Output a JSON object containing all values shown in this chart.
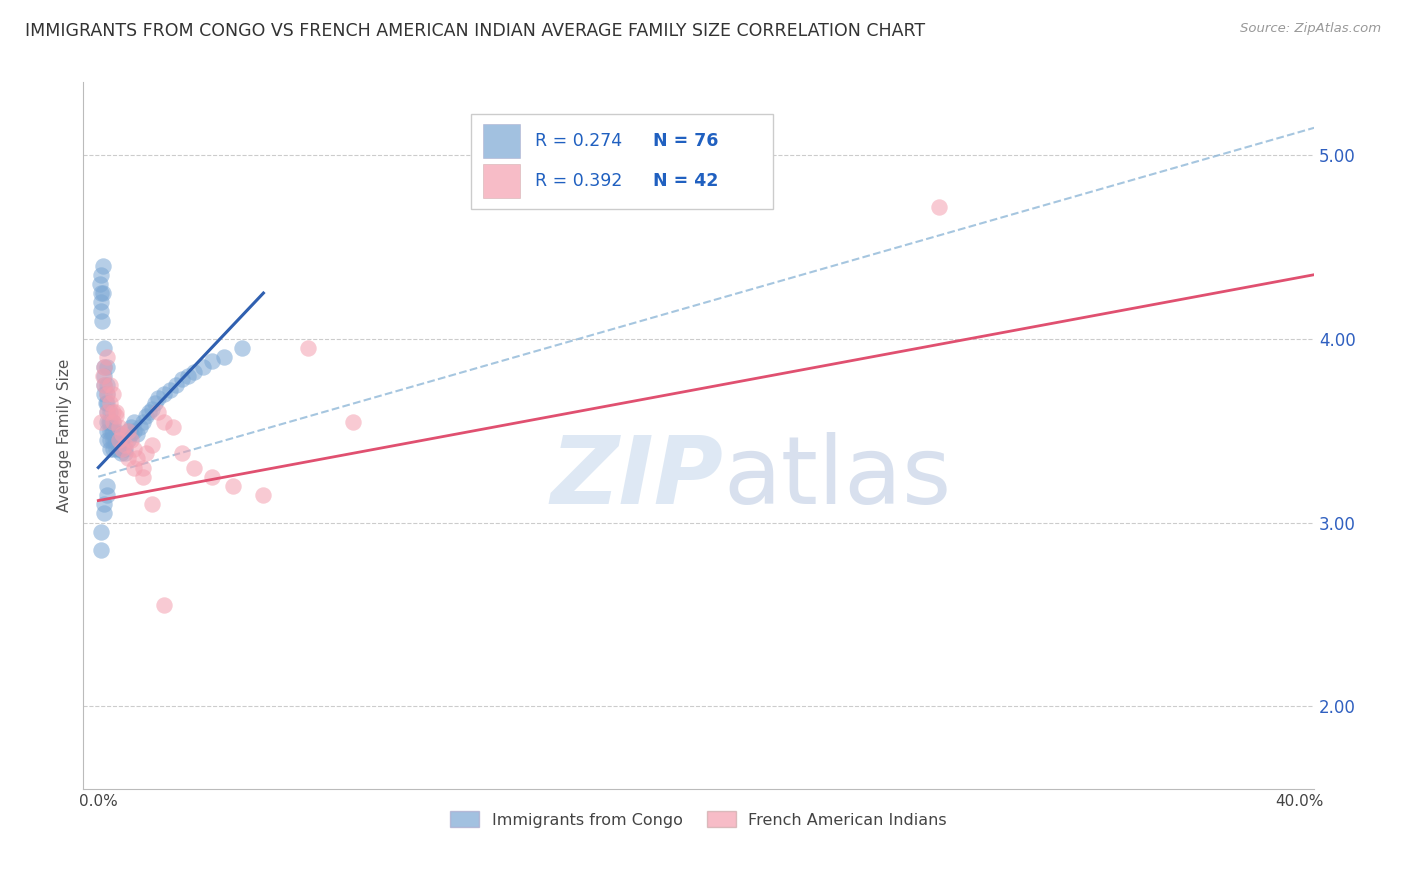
{
  "title": "IMMIGRANTS FROM CONGO VS FRENCH AMERICAN INDIAN AVERAGE FAMILY SIZE CORRELATION CHART",
  "source": "Source: ZipAtlas.com",
  "ylabel": "Average Family Size",
  "xlim": [
    -0.005,
    0.405
  ],
  "ylim": [
    1.55,
    5.4
  ],
  "yticks": [
    2.0,
    3.0,
    4.0,
    5.0
  ],
  "xtick_positions": [
    0.0,
    0.1,
    0.2,
    0.3,
    0.4
  ],
  "xtick_labels": [
    "0.0%",
    "",
    "",
    "",
    "40.0%"
  ],
  "legend_r1": "R = 0.274",
  "legend_n1": "N = 76",
  "legend_r2": "R = 0.392",
  "legend_n2": "N = 42",
  "label1": "Immigrants from Congo",
  "label2": "French American Indians",
  "color1": "#7ba7d4",
  "color2": "#f4a0b0",
  "trend_color1": "#3060b0",
  "trend_color2": "#e05070",
  "dash_color": "#90b8d8",
  "watermark_color": "#d0dff0",
  "title_fontsize": 12.5,
  "axis_label_fontsize": 11,
  "tick_fontsize": 11,
  "legend_text_color": "#2060c0",
  "congo_x": [
    0.0005,
    0.0008,
    0.001,
    0.001,
    0.001,
    0.0012,
    0.0015,
    0.0015,
    0.002,
    0.002,
    0.002,
    0.002,
    0.002,
    0.0025,
    0.003,
    0.003,
    0.003,
    0.003,
    0.003,
    0.003,
    0.003,
    0.003,
    0.0035,
    0.004,
    0.004,
    0.004,
    0.004,
    0.004,
    0.0045,
    0.005,
    0.005,
    0.005,
    0.005,
    0.0055,
    0.006,
    0.006,
    0.006,
    0.0065,
    0.007,
    0.007,
    0.007,
    0.0075,
    0.008,
    0.008,
    0.009,
    0.009,
    0.01,
    0.01,
    0.011,
    0.011,
    0.012,
    0.012,
    0.013,
    0.014,
    0.015,
    0.016,
    0.017,
    0.018,
    0.019,
    0.02,
    0.022,
    0.024,
    0.026,
    0.028,
    0.03,
    0.032,
    0.035,
    0.038,
    0.042,
    0.048,
    0.001,
    0.001,
    0.002,
    0.002,
    0.003,
    0.003
  ],
  "congo_y": [
    4.3,
    4.25,
    4.2,
    4.35,
    4.15,
    4.1,
    4.4,
    4.25,
    3.95,
    3.85,
    3.8,
    3.75,
    3.7,
    3.65,
    3.85,
    3.75,
    3.7,
    3.65,
    3.6,
    3.55,
    3.5,
    3.45,
    3.55,
    3.6,
    3.55,
    3.5,
    3.45,
    3.4,
    3.5,
    3.55,
    3.5,
    3.45,
    3.4,
    3.45,
    3.5,
    3.45,
    3.4,
    3.42,
    3.48,
    3.45,
    3.4,
    3.38,
    3.45,
    3.42,
    3.4,
    3.38,
    3.5,
    3.45,
    3.52,
    3.48,
    3.55,
    3.5,
    3.48,
    3.52,
    3.55,
    3.58,
    3.6,
    3.62,
    3.65,
    3.68,
    3.7,
    3.72,
    3.75,
    3.78,
    3.8,
    3.82,
    3.85,
    3.88,
    3.9,
    3.95,
    2.85,
    2.95,
    3.05,
    3.1,
    3.15,
    3.2
  ],
  "fai_x": [
    0.001,
    0.0015,
    0.002,
    0.002,
    0.003,
    0.003,
    0.004,
    0.005,
    0.005,
    0.006,
    0.007,
    0.008,
    0.009,
    0.01,
    0.011,
    0.012,
    0.013,
    0.015,
    0.016,
    0.018,
    0.02,
    0.022,
    0.025,
    0.028,
    0.032,
    0.038,
    0.045,
    0.055,
    0.07,
    0.085,
    0.003,
    0.004,
    0.005,
    0.007,
    0.008,
    0.01,
    0.012,
    0.015,
    0.018,
    0.022,
    0.006,
    0.28
  ],
  "fai_y": [
    3.55,
    3.8,
    3.75,
    3.85,
    3.7,
    3.6,
    3.65,
    3.55,
    3.7,
    3.58,
    3.52,
    3.48,
    3.42,
    3.5,
    3.45,
    3.4,
    3.35,
    3.3,
    3.38,
    3.42,
    3.6,
    3.55,
    3.52,
    3.38,
    3.3,
    3.25,
    3.2,
    3.15,
    3.95,
    3.55,
    3.9,
    3.75,
    3.6,
    3.45,
    3.4,
    3.35,
    3.3,
    3.25,
    3.1,
    2.55,
    3.6,
    4.72
  ],
  "congo_trend_x": [
    0.0,
    0.055
  ],
  "congo_trend_y": [
    3.3,
    4.25
  ],
  "fai_trend_x": [
    0.0,
    0.405
  ],
  "fai_trend_y": [
    3.12,
    4.35
  ],
  "dash_line_x": [
    0.0,
    0.405
  ],
  "dash_line_y": [
    3.25,
    5.15
  ]
}
